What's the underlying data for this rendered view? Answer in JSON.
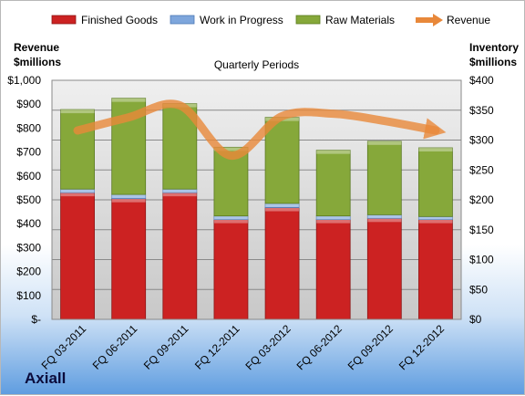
{
  "chart_data": {
    "type": "bar",
    "subtitle": "Quarterly Periods",
    "categories": [
      "FQ 03-2011",
      "FQ 06-2011",
      "FQ 09-2011",
      "FQ 12-2011",
      "FQ 03-2012",
      "FQ 06-2012",
      "FQ 09-2012",
      "FQ 12-2012"
    ],
    "stacked": true,
    "series": [
      {
        "name": "Finished Goods",
        "axis": "right",
        "color": "#cc2222",
        "values": [
          212,
          202,
          212,
          167,
          187,
          167,
          169,
          167
        ]
      },
      {
        "name": "Work in Progress",
        "axis": "right",
        "color": "#7ea6dc",
        "values": [
          6,
          7,
          6,
          6,
          7,
          6,
          6,
          5
        ]
      },
      {
        "name": "Raw Materials",
        "axis": "right",
        "color": "#86a83a",
        "values": [
          133,
          161,
          143,
          115,
          144,
          110,
          123,
          115
        ]
      }
    ],
    "line_series": {
      "name": "Revenue",
      "axis": "left",
      "color": "#e8883a",
      "values": [
        790,
        845,
        895,
        685,
        850,
        860,
        830,
        790
      ]
    },
    "left_axis": {
      "title_line1": "Revenue",
      "title_line2": "$millions",
      "min": 0,
      "max": 1000,
      "ticks": [
        "$-",
        "$100",
        "$200",
        "$300",
        "$400",
        "$500",
        "$600",
        "$700",
        "$800",
        "$900",
        "$1,000"
      ]
    },
    "right_axis": {
      "title_line1": "Inventory",
      "title_line2": "$millions",
      "min": 0,
      "max": 400,
      "ticks": [
        "$0",
        "$50",
        "$100",
        "$150",
        "$200",
        "$250",
        "$300",
        "$350",
        "$400"
      ]
    },
    "legend_position": "top",
    "grid": true
  },
  "brand": "Axiall"
}
